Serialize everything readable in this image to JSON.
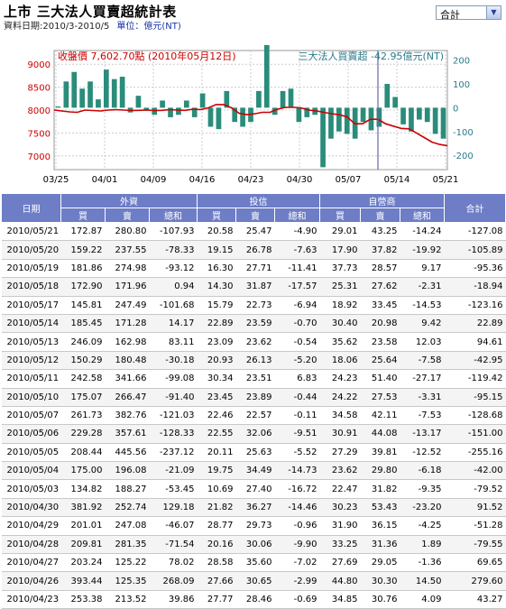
{
  "header": {
    "title": "上市 三大法人買賣超統計表",
    "date_range": "資料日期:2010/3-2010/5",
    "unit": "單位：億元(NT)",
    "select_value": "合計"
  },
  "chart": {
    "price_label": "收盤價 7,602.70點 (2010年05月12日)",
    "net_label": "三大法人買賣超 -42.95億元(NT)"
  },
  "chart_data": {
    "type": "bar",
    "left_axis": {
      "ticks": [
        "9000",
        "8500",
        "8000",
        "7500",
        "7000"
      ],
      "range": [
        6700,
        9300
      ]
    },
    "right_axis": {
      "ticks": [
        "200",
        "100",
        "0",
        "-100",
        "-200"
      ],
      "range": [
        -260,
        240
      ]
    },
    "x_ticks": [
      "03/25",
      "04/01",
      "04/09",
      "04/16",
      "04/23",
      "04/30",
      "05/07",
      "05/14",
      "05/21"
    ],
    "bars": [
      5,
      110,
      150,
      80,
      110,
      35,
      160,
      120,
      130,
      -20,
      50,
      -10,
      -30,
      30,
      -40,
      -30,
      30,
      -40,
      60,
      -80,
      -90,
      70,
      -60,
      -80,
      -60,
      70,
      270,
      -30,
      70,
      80,
      -60,
      -40,
      -30,
      -250,
      -130,
      -100,
      -110,
      -130,
      -60,
      -95,
      -80,
      100,
      45,
      -70,
      -100,
      -50,
      -60,
      -110,
      -130
    ],
    "price": [
      8000,
      7980,
      7960,
      7950,
      8000,
      7990,
      7980,
      8000,
      8010,
      8000,
      7990,
      7995,
      8000,
      7990,
      7995,
      8010,
      8000,
      7995,
      8020,
      8010,
      8050,
      8120,
      8120,
      8050,
      7930,
      7900,
      7920,
      7950,
      7950,
      8020,
      8060,
      8060,
      8050,
      8000,
      7980,
      7950,
      7920,
      7900,
      7850,
      7700,
      7700,
      7800,
      7800,
      7700,
      7650,
      7600,
      7590,
      7500,
      7400,
      7300,
      7250,
      7220
    ]
  },
  "table": {
    "headers": {
      "date": "日期",
      "foreign": "外資",
      "trust": "投信",
      "dealer": "自營商",
      "total": "合計"
    },
    "sub": [
      "買",
      "賣",
      "總和"
    ],
    "rows": [
      [
        "2010/05/21",
        "172.87",
        "280.80",
        "-107.93",
        "20.58",
        "25.47",
        "-4.90",
        "29.01",
        "43.25",
        "-14.24",
        "-127.08"
      ],
      [
        "2010/05/20",
        "159.22",
        "237.55",
        "-78.33",
        "19.15",
        "26.78",
        "-7.63",
        "17.90",
        "37.82",
        "-19.92",
        "-105.89"
      ],
      [
        "2010/05/19",
        "181.86",
        "274.98",
        "-93.12",
        "16.30",
        "27.71",
        "-11.41",
        "37.73",
        "28.57",
        "9.17",
        "-95.36"
      ],
      [
        "2010/05/18",
        "172.90",
        "171.96",
        "0.94",
        "14.30",
        "31.87",
        "-17.57",
        "25.31",
        "27.62",
        "-2.31",
        "-18.94"
      ],
      [
        "2010/05/17",
        "145.81",
        "247.49",
        "-101.68",
        "15.79",
        "22.73",
        "-6.94",
        "18.92",
        "33.45",
        "-14.53",
        "-123.16"
      ],
      [
        "2010/05/14",
        "185.45",
        "171.28",
        "14.17",
        "22.89",
        "23.59",
        "-0.70",
        "30.40",
        "20.98",
        "9.42",
        "22.89"
      ],
      [
        "2010/05/13",
        "246.09",
        "162.98",
        "83.11",
        "23.09",
        "23.62",
        "-0.54",
        "35.62",
        "23.58",
        "12.03",
        "94.61"
      ],
      [
        "2010/05/12",
        "150.29",
        "180.48",
        "-30.18",
        "20.93",
        "26.13",
        "-5.20",
        "18.06",
        "25.64",
        "-7.58",
        "-42.95"
      ],
      [
        "2010/05/11",
        "242.58",
        "341.66",
        "-99.08",
        "30.34",
        "23.51",
        "6.83",
        "24.23",
        "51.40",
        "-27.17",
        "-119.42"
      ],
      [
        "2010/05/10",
        "175.07",
        "266.47",
        "-91.40",
        "23.45",
        "23.89",
        "-0.44",
        "24.22",
        "27.53",
        "-3.31",
        "-95.15"
      ],
      [
        "2010/05/07",
        "261.73",
        "382.76",
        "-121.03",
        "22.46",
        "22.57",
        "-0.11",
        "34.58",
        "42.11",
        "-7.53",
        "-128.68"
      ],
      [
        "2010/05/06",
        "229.28",
        "357.61",
        "-128.33",
        "22.55",
        "32.06",
        "-9.51",
        "30.91",
        "44.08",
        "-13.17",
        "-151.00"
      ],
      [
        "2010/05/05",
        "208.44",
        "445.56",
        "-237.12",
        "20.11",
        "25.63",
        "-5.52",
        "27.29",
        "39.81",
        "-12.52",
        "-255.16"
      ],
      [
        "2010/05/04",
        "175.00",
        "196.08",
        "-21.09",
        "19.75",
        "34.49",
        "-14.73",
        "23.62",
        "29.80",
        "-6.18",
        "-42.00"
      ],
      [
        "2010/05/03",
        "134.82",
        "188.27",
        "-53.45",
        "10.69",
        "27.40",
        "-16.72",
        "22.47",
        "31.82",
        "-9.35",
        "-79.52"
      ],
      [
        "2010/04/30",
        "381.92",
        "252.74",
        "129.18",
        "21.82",
        "36.27",
        "-14.46",
        "30.23",
        "53.43",
        "-23.20",
        "91.52"
      ],
      [
        "2010/04/29",
        "201.01",
        "247.08",
        "-46.07",
        "28.77",
        "29.73",
        "-0.96",
        "31.90",
        "36.15",
        "-4.25",
        "-51.28"
      ],
      [
        "2010/04/28",
        "209.81",
        "281.35",
        "-71.54",
        "20.16",
        "30.06",
        "-9.90",
        "33.25",
        "31.36",
        "1.89",
        "-79.55"
      ],
      [
        "2010/04/27",
        "203.24",
        "125.22",
        "78.02",
        "28.58",
        "35.60",
        "-7.02",
        "27.69",
        "29.05",
        "-1.36",
        "69.65"
      ],
      [
        "2010/04/26",
        "393.44",
        "125.35",
        "268.09",
        "27.66",
        "30.65",
        "-2.99",
        "44.80",
        "30.30",
        "14.50",
        "279.60"
      ],
      [
        "2010/04/23",
        "253.38",
        "213.52",
        "39.86",
        "27.77",
        "28.46",
        "-0.69",
        "34.85",
        "30.76",
        "4.09",
        "43.27"
      ]
    ]
  }
}
